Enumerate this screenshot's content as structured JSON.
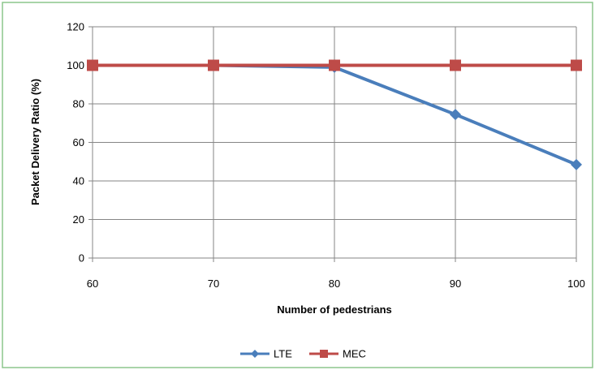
{
  "chart_data": {
    "type": "line",
    "title": "",
    "xlabel": "Number of pedestrians",
    "ylabel": "Packet Delivery Ratio (%)",
    "x": [
      60,
      70,
      80,
      90,
      100
    ],
    "xlim": [
      60,
      100
    ],
    "ylim": [
      0,
      120
    ],
    "yticks": [
      0,
      20,
      40,
      60,
      80,
      100,
      120
    ],
    "grid": true,
    "legend_position": "bottom",
    "series": [
      {
        "name": "LTE",
        "values": [
          100,
          100,
          99,
          74.5,
          48.5
        ],
        "color": "#4a7ebb",
        "marker": "diamond"
      },
      {
        "name": "MEC",
        "values": [
          100,
          100,
          100,
          100,
          100
        ],
        "color": "#be4b48",
        "marker": "square"
      }
    ]
  },
  "colors": {
    "frame_border": "#8cc68c",
    "gridline": "#868686"
  }
}
